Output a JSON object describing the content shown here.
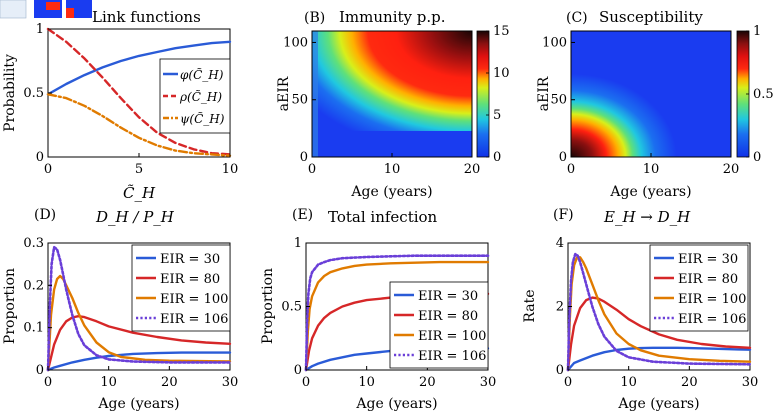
{
  "colors": {
    "blue": "#2a5bd7",
    "red": "#d62728",
    "orange": "#e07b00",
    "purple": "#6a3fd8",
    "axis": "#000000"
  },
  "chart_data": [
    {
      "id": "A",
      "type": "line",
      "panel_label": "",
      "title": "Link functions",
      "xlabel": "C̃_H",
      "ylabel": "Probability",
      "xlim": [
        0,
        10
      ],
      "ylim": [
        0,
        1
      ],
      "xticks": [
        0,
        5,
        10
      ],
      "yticks": [
        0,
        0.5,
        1
      ],
      "legend": {
        "position": "right",
        "entries": [
          "φ(C̃_H)",
          "ρ(C̃_H)",
          "ψ(C̃_H)"
        ]
      },
      "series": [
        {
          "name": "φ(C̃_H)",
          "color": "blue",
          "style": "solid",
          "x": [
            0,
            1,
            2,
            3,
            4,
            5,
            6,
            7,
            8,
            9,
            10
          ],
          "y": [
            0.49,
            0.57,
            0.64,
            0.7,
            0.75,
            0.79,
            0.82,
            0.85,
            0.87,
            0.89,
            0.9
          ]
        },
        {
          "name": "ρ(C̃_H)",
          "color": "red",
          "style": "dashed",
          "x": [
            0,
            1,
            2,
            3,
            4,
            5,
            6,
            7,
            8,
            9,
            10
          ],
          "y": [
            1.0,
            0.9,
            0.77,
            0.62,
            0.46,
            0.31,
            0.19,
            0.11,
            0.06,
            0.03,
            0.02
          ]
        },
        {
          "name": "ψ(C̃_H)",
          "color": "orange",
          "style": "dashdot",
          "x": [
            0,
            1,
            2,
            3,
            4,
            5,
            6,
            7,
            8,
            9,
            10
          ],
          "y": [
            0.49,
            0.46,
            0.4,
            0.32,
            0.23,
            0.15,
            0.09,
            0.05,
            0.03,
            0.02,
            0.01
          ]
        }
      ]
    },
    {
      "id": "B",
      "type": "heatmap",
      "panel_label": "(B)",
      "title": "Immunity p.p.",
      "xlabel": "Age (years)",
      "ylabel": "aEIR",
      "xlim": [
        0,
        20
      ],
      "ylim": [
        0,
        110
      ],
      "xticks": [
        0,
        10,
        20
      ],
      "yticks": [
        0,
        50,
        100
      ],
      "colorbar": {
        "min": 0,
        "max": 15,
        "ticks": [
          0,
          5,
          10,
          15
        ]
      }
    },
    {
      "id": "C",
      "type": "heatmap",
      "panel_label": "(C)",
      "title": "Susceptibility",
      "xlabel": "Age (years)",
      "ylabel": "aEIR",
      "xlim": [
        0,
        20
      ],
      "ylim": [
        0,
        110
      ],
      "xticks": [
        0,
        10,
        20
      ],
      "yticks": [
        0,
        50,
        100
      ],
      "colorbar": {
        "min": 0,
        "max": 1,
        "ticks": [
          0,
          0.5,
          1
        ]
      }
    },
    {
      "id": "D",
      "type": "line",
      "panel_label": "(D)",
      "title": "D_H / P_H",
      "xlabel": "Age (years)",
      "ylabel": "Proportion",
      "xlim": [
        0,
        30
      ],
      "ylim": [
        0,
        0.3
      ],
      "xticks": [
        0,
        10,
        20,
        30
      ],
      "yticks": [
        0,
        0.1,
        0.2,
        0.3
      ],
      "legend": {
        "position": "top-right",
        "entries": [
          "EIR = 30",
          "EIR = 80",
          "EIR = 100",
          "EIR = 106"
        ]
      },
      "series": [
        {
          "name": "EIR = 30",
          "color": "blue",
          "style": "solid",
          "x": [
            0,
            1,
            2,
            4,
            6,
            8,
            10,
            14,
            18,
            22,
            26,
            30
          ],
          "y": [
            0,
            0.006,
            0.01,
            0.018,
            0.024,
            0.029,
            0.033,
            0.038,
            0.04,
            0.041,
            0.041,
            0.041
          ]
        },
        {
          "name": "EIR = 80",
          "color": "red",
          "style": "solid",
          "x": [
            0,
            1,
            2,
            3,
            4,
            5,
            6,
            8,
            10,
            14,
            18,
            22,
            26,
            30
          ],
          "y": [
            0,
            0.06,
            0.095,
            0.115,
            0.124,
            0.127,
            0.125,
            0.115,
            0.103,
            0.088,
            0.078,
            0.07,
            0.065,
            0.062
          ]
        },
        {
          "name": "EIR = 100",
          "color": "orange",
          "style": "solid",
          "x": [
            0,
            0.5,
            1,
            1.5,
            2,
            2.5,
            3,
            4,
            5,
            6,
            8,
            10,
            12,
            16,
            20,
            25,
            30
          ],
          "y": [
            0,
            0.13,
            0.19,
            0.215,
            0.222,
            0.215,
            0.2,
            0.17,
            0.135,
            0.105,
            0.065,
            0.042,
            0.031,
            0.024,
            0.022,
            0.021,
            0.02
          ]
        },
        {
          "name": "EIR = 106",
          "color": "purple",
          "style": "dotted",
          "x": [
            0,
            0.3,
            0.6,
            1,
            1.5,
            2,
            2.5,
            3,
            4,
            5,
            6,
            8,
            10,
            14,
            20,
            30
          ],
          "y": [
            0,
            0.15,
            0.25,
            0.29,
            0.285,
            0.26,
            0.225,
            0.19,
            0.13,
            0.085,
            0.058,
            0.035,
            0.025,
            0.02,
            0.018,
            0.018
          ]
        }
      ]
    },
    {
      "id": "E",
      "type": "line",
      "panel_label": "(E)",
      "title": "Total infection",
      "xlabel": "Age (years)",
      "ylabel": "Proportion",
      "xlim": [
        0,
        30
      ],
      "ylim": [
        0,
        1
      ],
      "xticks": [
        0,
        10,
        20,
        30
      ],
      "yticks": [
        0,
        0.5,
        1
      ],
      "legend": {
        "position": "bottom-right",
        "entries": [
          "EIR = 30",
          "EIR = 80",
          "EIR = 100",
          "EIR = 106"
        ]
      },
      "series": [
        {
          "name": "EIR = 30",
          "color": "blue",
          "style": "solid",
          "x": [
            0,
            1,
            2,
            4,
            6,
            8,
            10,
            14,
            18,
            22,
            26,
            30
          ],
          "y": [
            0,
            0.03,
            0.05,
            0.08,
            0.1,
            0.12,
            0.13,
            0.15,
            0.16,
            0.165,
            0.17,
            0.17
          ]
        },
        {
          "name": "EIR = 80",
          "color": "red",
          "style": "solid",
          "x": [
            0,
            0.5,
            1,
            2,
            3,
            4,
            6,
            8,
            10,
            14,
            18,
            22,
            26,
            30
          ],
          "y": [
            0,
            0.15,
            0.25,
            0.35,
            0.41,
            0.45,
            0.5,
            0.53,
            0.55,
            0.57,
            0.58,
            0.59,
            0.595,
            0.6
          ]
        },
        {
          "name": "EIR = 100",
          "color": "orange",
          "style": "solid",
          "x": [
            0,
            0.3,
            0.6,
            1,
            2,
            3,
            4,
            6,
            8,
            10,
            14,
            18,
            22,
            26,
            30
          ],
          "y": [
            0,
            0.3,
            0.48,
            0.58,
            0.69,
            0.74,
            0.77,
            0.8,
            0.82,
            0.83,
            0.84,
            0.845,
            0.85,
            0.85,
            0.85
          ]
        },
        {
          "name": "EIR = 106",
          "color": "purple",
          "style": "dotted",
          "x": [
            0,
            0.2,
            0.4,
            0.7,
            1,
            2,
            3,
            4,
            6,
            8,
            10,
            14,
            18,
            22,
            26,
            30
          ],
          "y": [
            0,
            0.4,
            0.6,
            0.72,
            0.77,
            0.83,
            0.85,
            0.865,
            0.88,
            0.885,
            0.89,
            0.895,
            0.9,
            0.9,
            0.9,
            0.9
          ]
        }
      ]
    },
    {
      "id": "F",
      "type": "line",
      "panel_label": "(F)",
      "title": "E_H → D_H",
      "xlabel": "Age (years)",
      "ylabel": "Rate",
      "xlim": [
        0,
        30
      ],
      "ylim": [
        0,
        4
      ],
      "xticks": [
        0,
        10,
        20,
        30
      ],
      "yticks": [
        0,
        2,
        4
      ],
      "legend": {
        "position": "top-right",
        "entries": [
          "EIR = 30",
          "EIR = 80",
          "EIR = 100",
          "EIR = 106"
        ]
      },
      "series": [
        {
          "name": "EIR = 30",
          "color": "blue",
          "style": "solid",
          "x": [
            0,
            1,
            2,
            4,
            6,
            8,
            10,
            12,
            14,
            16,
            18,
            20,
            24,
            28,
            30
          ],
          "y": [
            0,
            0.22,
            0.3,
            0.45,
            0.56,
            0.63,
            0.67,
            0.69,
            0.7,
            0.7,
            0.7,
            0.69,
            0.67,
            0.65,
            0.64
          ]
        },
        {
          "name": "EIR = 80",
          "color": "red",
          "style": "solid",
          "x": [
            0,
            0.5,
            1,
            2,
            3,
            4,
            5,
            6,
            8,
            10,
            12,
            15,
            18,
            22,
            26,
            30
          ],
          "y": [
            0,
            0.8,
            1.4,
            1.95,
            2.2,
            2.28,
            2.25,
            2.15,
            1.9,
            1.6,
            1.38,
            1.12,
            0.95,
            0.82,
            0.74,
            0.7
          ]
        },
        {
          "name": "EIR = 100",
          "color": "orange",
          "style": "solid",
          "x": [
            0,
            0.3,
            0.6,
            1,
            1.5,
            2,
            2.5,
            3,
            4,
            5,
            6,
            8,
            10,
            12,
            15,
            20,
            25,
            30
          ],
          "y": [
            0,
            1.6,
            2.7,
            3.3,
            3.55,
            3.55,
            3.4,
            3.2,
            2.7,
            2.2,
            1.75,
            1.15,
            0.82,
            0.62,
            0.45,
            0.34,
            0.29,
            0.26
          ]
        },
        {
          "name": "EIR = 106",
          "color": "purple",
          "style": "dotted",
          "x": [
            0,
            0.2,
            0.5,
            0.8,
            1.2,
            1.6,
            2,
            2.5,
            3,
            4,
            5,
            6,
            8,
            10,
            14,
            20,
            30
          ],
          "y": [
            0,
            1.5,
            2.8,
            3.4,
            3.65,
            3.6,
            3.4,
            3.05,
            2.7,
            2.0,
            1.45,
            1.05,
            0.6,
            0.4,
            0.26,
            0.2,
            0.18
          ]
        }
      ]
    }
  ]
}
